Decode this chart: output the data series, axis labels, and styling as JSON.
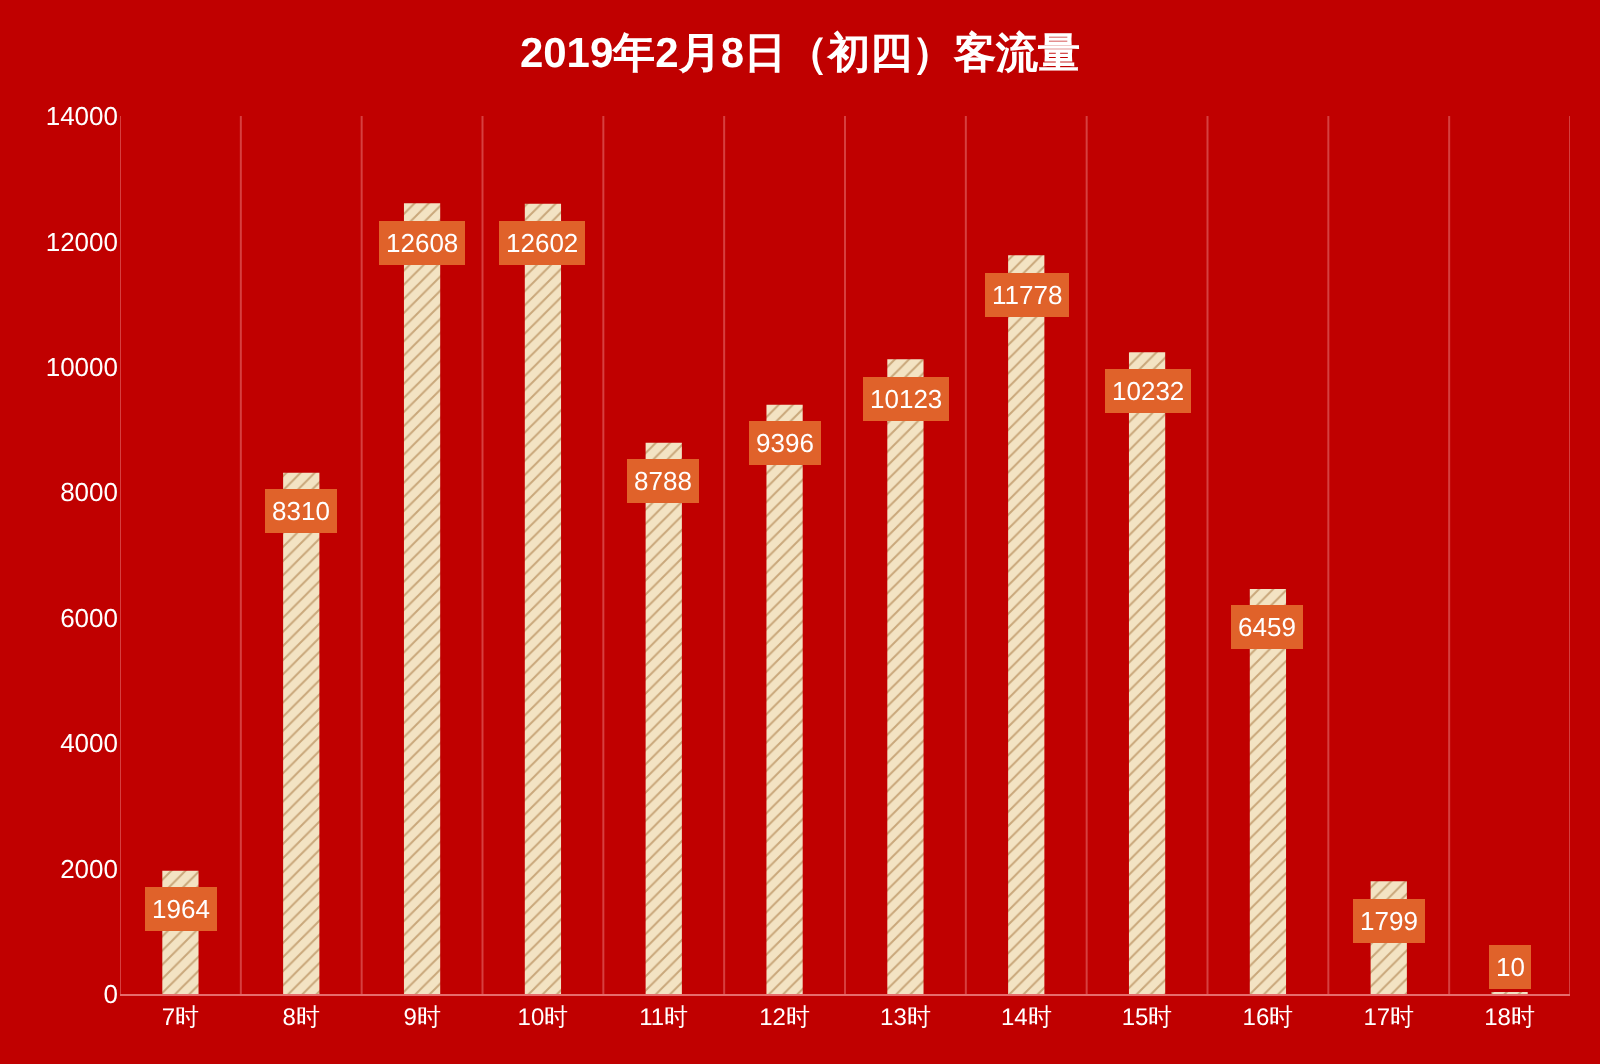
{
  "chart_data": {
    "type": "bar",
    "title": "2019年2月8日（初四）客流量",
    "categories": [
      "7时",
      "8时",
      "9时",
      "10时",
      "11时",
      "12时",
      "13时",
      "14时",
      "15时",
      "16时",
      "17时",
      "18时"
    ],
    "values": [
      1964,
      8310,
      12608,
      12602,
      8788,
      9396,
      10123,
      11778,
      10232,
      6459,
      1799,
      10
    ],
    "color": "#f3e3c3",
    "ylim": [
      0,
      14000
    ],
    "yticks": [
      0,
      2000,
      4000,
      6000,
      8000,
      10000,
      12000,
      14000
    ],
    "grid": "x",
    "data_labels": true
  }
}
